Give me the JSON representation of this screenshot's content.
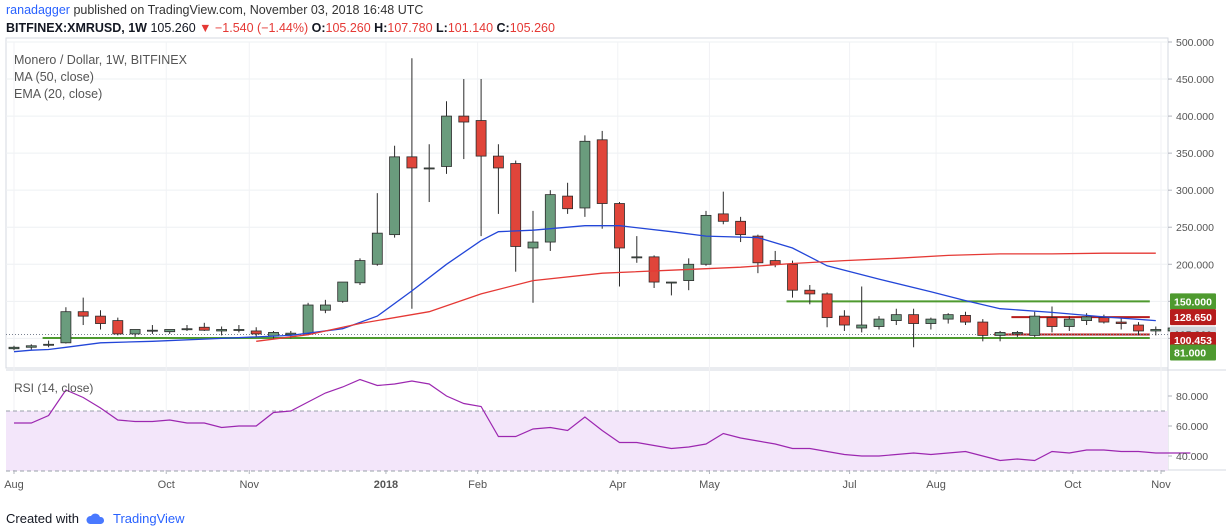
{
  "header": {
    "user": "ranadagger",
    "text": "published on TradingView.com, November 03, 2018 16:48 UTC"
  },
  "quote": {
    "symbol": "BITFINEX:XMRUSD, 1W",
    "last": "105.260",
    "arrow": "▼",
    "change": "−1.540 (−1.44%)",
    "o_label": "O:",
    "o": "105.260",
    "h_label": "H:",
    "h": "107.780",
    "l_label": "L:",
    "l": "101.140",
    "c_label": "C:",
    "c": "105.260"
  },
  "legend": {
    "title": "Monero / Dollar, 1W, BITFINEX",
    "ma": "MA (50, close)",
    "ema": "EMA (20, close)"
  },
  "rsi_label": "RSI (14, close)",
  "footer": {
    "created": "Created with",
    "brand": "TradingView"
  },
  "colors": {
    "up": "#6a9c7d",
    "down": "#e0453a",
    "ema": "#2346d8",
    "ma": "#e53935",
    "support": "#4e9a2f",
    "resist": "#b71c1c",
    "rsi": "#9c27b0",
    "rsi_band": "#f3e6fa"
  },
  "chart_data": [
    {
      "type": "candlestick",
      "title": "Monero / Dollar, 1W, BITFINEX",
      "ylim": [
        60,
        500
      ],
      "yticks": [
        500,
        450,
        400,
        350,
        300,
        250,
        200,
        150,
        100
      ],
      "ytick_labels": [
        "500.000",
        "450.000",
        "400.000",
        "350.000",
        "300.000",
        "250.000",
        "200.000",
        "150.000",
        "100.000"
      ],
      "xtick_labels": [
        "Aug",
        "Oct",
        "Nov",
        "2018",
        "Feb",
        "Apr",
        "May",
        "Jul",
        "Aug",
        "Oct",
        "Nov"
      ],
      "price_labels": [
        {
          "text": "150.000",
          "kind": "support",
          "value": 150
        },
        {
          "text": "128.650",
          "kind": "resist",
          "value": 128.65
        },
        {
          "text": "105.260",
          "kind": "last",
          "value": 105.26
        },
        {
          "text": "100.453",
          "kind": "resist",
          "value": 100.453
        },
        {
          "text": "81.000",
          "kind": "support",
          "value": 81
        }
      ],
      "lines": [
        {
          "kind": "support",
          "value": 150,
          "from": 45,
          "to": 66
        },
        {
          "kind": "support",
          "value": 100.453,
          "from": 2,
          "to": 66
        },
        {
          "kind": "resist",
          "value": 128.65,
          "from": 58,
          "to": 66
        },
        {
          "kind": "resist",
          "value": 105.26,
          "from": 57,
          "to": 66
        }
      ],
      "candles": [
        [
          86,
          90,
          84,
          88
        ],
        [
          88,
          92,
          85,
          90
        ],
        [
          91,
          97,
          88,
          92
        ],
        [
          94,
          142,
          93,
          136
        ],
        [
          136,
          155,
          118,
          130
        ],
        [
          130,
          138,
          112,
          120
        ],
        [
          124,
          128,
          104,
          106
        ],
        [
          106,
          112,
          102,
          112
        ],
        [
          110,
          118,
          106,
          111
        ],
        [
          109,
          112,
          106,
          112
        ],
        [
          112,
          118,
          110,
          113
        ],
        [
          115,
          121,
          110,
          111
        ],
        [
          110,
          116,
          104,
          112
        ],
        [
          112,
          118,
          108,
          112
        ],
        [
          110,
          115,
          102,
          106
        ],
        [
          103,
          110,
          99,
          108
        ],
        [
          105,
          110,
          100,
          107
        ],
        [
          106,
          148,
          104,
          145
        ],
        [
          138,
          152,
          134,
          145
        ],
        [
          150,
          176,
          148,
          176
        ],
        [
          175,
          208,
          172,
          205
        ],
        [
          200,
          296,
          198,
          242
        ],
        [
          240,
          360,
          236,
          345
        ],
        [
          345,
          478,
          140,
          330
        ],
        [
          330,
          362,
          284,
          330
        ],
        [
          332,
          420,
          322,
          400
        ],
        [
          400,
          450,
          342,
          392
        ],
        [
          394,
          450,
          238,
          346
        ],
        [
          346,
          362,
          268,
          330
        ],
        [
          336,
          340,
          190,
          224
        ],
        [
          222,
          272,
          148,
          230
        ],
        [
          230,
          300,
          218,
          294
        ],
        [
          292,
          310,
          268,
          275
        ],
        [
          276,
          374,
          264,
          366
        ],
        [
          368,
          380,
          248,
          282
        ],
        [
          282,
          284,
          170,
          222
        ],
        [
          210,
          238,
          202,
          210
        ],
        [
          210,
          212,
          168,
          176
        ],
        [
          175,
          176,
          158,
          176
        ],
        [
          178,
          208,
          165,
          200
        ],
        [
          200,
          272,
          198,
          266
        ],
        [
          268,
          298,
          254,
          258
        ],
        [
          258,
          264,
          230,
          240
        ],
        [
          238,
          240,
          188,
          202
        ],
        [
          205,
          218,
          196,
          200
        ],
        [
          200,
          205,
          155,
          165
        ],
        [
          165,
          172,
          146,
          160
        ],
        [
          160,
          162,
          115,
          128
        ],
        [
          130,
          138,
          110,
          118
        ],
        [
          114,
          170,
          108,
          118
        ],
        [
          116,
          130,
          112,
          126
        ],
        [
          124,
          140,
          118,
          132
        ],
        [
          132,
          140,
          88,
          120
        ],
        [
          120,
          128,
          112,
          126
        ],
        [
          126,
          134,
          120,
          132
        ],
        [
          131,
          136,
          118,
          122
        ],
        [
          122,
          126,
          96,
          104
        ],
        [
          104,
          110,
          96,
          108
        ],
        [
          106,
          110,
          102,
          108
        ],
        [
          104,
          136,
          102,
          130
        ],
        [
          128,
          143,
          108,
          116
        ],
        [
          116,
          130,
          110,
          126
        ],
        [
          124,
          134,
          118,
          129
        ],
        [
          128,
          132,
          120,
          122
        ],
        [
          122,
          128,
          112,
          120
        ],
        [
          118,
          122,
          104,
          110
        ],
        [
          110,
          116,
          104,
          112
        ],
        [
          110,
          116,
          106,
          114
        ],
        [
          108,
          110,
          104,
          105
        ]
      ],
      "ema20": [
        [
          0,
          82
        ],
        [
          1,
          84
        ],
        [
          2,
          85
        ],
        [
          3,
          88
        ],
        [
          5,
          94
        ],
        [
          8,
          96
        ],
        [
          12,
          100
        ],
        [
          16,
          104
        ],
        [
          19,
          113
        ],
        [
          21,
          130
        ],
        [
          23,
          164
        ],
        [
          25,
          200
        ],
        [
          27,
          232
        ],
        [
          28,
          244
        ],
        [
          30,
          246
        ],
        [
          33,
          252
        ],
        [
          35,
          252
        ],
        [
          38,
          244
        ],
        [
          40,
          238
        ],
        [
          43,
          236
        ],
        [
          45,
          222
        ],
        [
          47,
          198
        ],
        [
          50,
          180
        ],
        [
          53,
          163
        ],
        [
          55,
          151
        ],
        [
          57,
          140
        ],
        [
          60,
          135
        ],
        [
          63,
          129
        ],
        [
          66,
          124
        ]
      ],
      "ma50": [
        [
          14,
          96
        ],
        [
          17,
          105
        ],
        [
          20,
          120
        ],
        [
          24,
          136
        ],
        [
          27,
          160
        ],
        [
          30,
          178
        ],
        [
          34,
          188
        ],
        [
          38,
          192
        ],
        [
          42,
          196
        ],
        [
          45,
          201
        ],
        [
          48,
          205
        ],
        [
          51,
          208
        ],
        [
          54,
          212
        ],
        [
          57,
          214
        ],
        [
          60,
          214
        ],
        [
          63,
          215
        ],
        [
          66,
          215
        ]
      ]
    },
    {
      "type": "line",
      "title": "RSI (14, close)",
      "ylim": [
        32,
        96
      ],
      "yticks": [
        80,
        60,
        40
      ],
      "ytick_labels": [
        "80.000",
        "60.000",
        "40.000"
      ],
      "bands": [
        70,
        30
      ],
      "series": [
        {
          "values": [
            [
              0,
              62
            ],
            [
              1,
              62
            ],
            [
              2,
              67
            ],
            [
              3,
              84
            ],
            [
              4,
              79
            ],
            [
              5,
              72
            ],
            [
              6,
              64
            ],
            [
              7,
              63
            ],
            [
              8,
              63
            ],
            [
              9,
              64
            ],
            [
              10,
              62
            ],
            [
              11,
              62
            ],
            [
              12,
              59
            ],
            [
              13,
              60
            ],
            [
              14,
              60
            ],
            [
              15,
              69
            ],
            [
              16,
              70
            ],
            [
              17,
              76
            ],
            [
              18,
              82
            ],
            [
              19,
              86
            ],
            [
              20,
              91
            ],
            [
              21,
              87
            ],
            [
              22,
              88
            ],
            [
              23,
              90
            ],
            [
              24,
              88
            ],
            [
              25,
              80
            ],
            [
              26,
              75
            ],
            [
              27,
              73
            ],
            [
              28,
              53
            ],
            [
              29,
              53
            ],
            [
              30,
              58
            ],
            [
              31,
              59
            ],
            [
              32,
              57
            ],
            [
              33,
              66
            ],
            [
              34,
              57
            ],
            [
              35,
              49
            ],
            [
              36,
              49
            ],
            [
              37,
              47
            ],
            [
              38,
              45
            ],
            [
              39,
              46
            ],
            [
              40,
              48
            ],
            [
              41,
              55
            ],
            [
              42,
              52
            ],
            [
              43,
              50
            ],
            [
              44,
              48
            ],
            [
              45,
              45
            ],
            [
              46,
              45
            ],
            [
              47,
              43
            ],
            [
              48,
              41
            ],
            [
              49,
              40
            ],
            [
              50,
              40
            ],
            [
              51,
              41
            ],
            [
              52,
              42
            ],
            [
              53,
              41
            ],
            [
              54,
              42
            ],
            [
              55,
              43
            ],
            [
              56,
              40
            ],
            [
              57,
              37
            ],
            [
              58,
              38
            ],
            [
              59,
              37
            ],
            [
              60,
              43
            ],
            [
              61,
              42
            ],
            [
              62,
              44
            ],
            [
              63,
              44
            ],
            [
              64,
              43
            ],
            [
              65,
              43
            ],
            [
              66,
              42
            ],
            [
              67,
              42
            ],
            [
              68,
              42
            ]
          ]
        }
      ]
    }
  ]
}
